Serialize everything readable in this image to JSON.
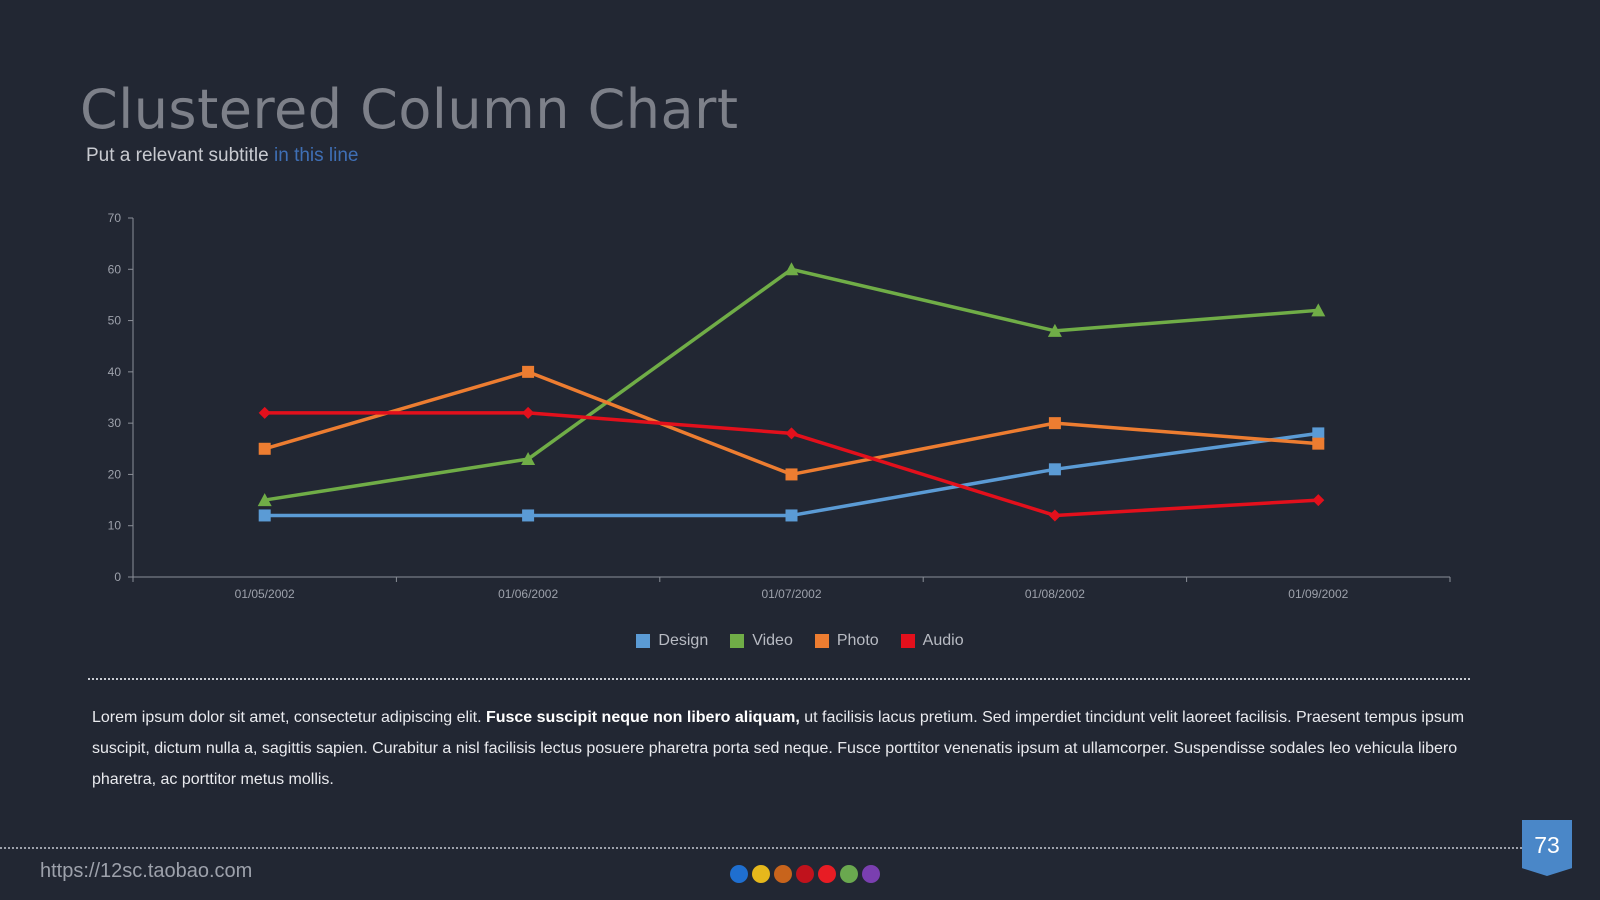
{
  "slide": {
    "title": "Clustered Column Chart",
    "subtitle_main": "Put a relevant subtitle ",
    "subtitle_highlight": "in this line",
    "body_part1": "Lorem ipsum dolor sit amet, consectetur adipiscing elit. ",
    "body_bold": "Fusce suscipit neque non libero aliquam,",
    "body_part2": " ut facilisis lacus pretium. Sed imperdiet tincidunt velit laoreet facilisis. Praesent tempus ipsum suscipit, dictum nulla a, sagittis sapien. Curabitur a nisl facilisis lectus posuere pharetra porta sed neque. Fusce porttitor venenatis ipsum at ullamcorper. Suspendisse sodales leo vehicula libero pharetra, ac porttitor metus mollis.",
    "footer_url": "https://12sc.taobao.com",
    "page_number": "73",
    "footer_dot_colors": [
      "#1f6fd0",
      "#e6b81c",
      "#c8641c",
      "#c0121c",
      "#e81c24",
      "#6aa84f",
      "#7a3fb0"
    ]
  },
  "chart_data": {
    "type": "line",
    "categories": [
      "01/05/2002",
      "01/06/2002",
      "01/07/2002",
      "01/08/2002",
      "01/09/2002"
    ],
    "ylim": [
      0,
      70
    ],
    "yticks": [
      0,
      10,
      20,
      30,
      40,
      50,
      60,
      70
    ],
    "grid": false,
    "legend_position": "bottom",
    "series": [
      {
        "name": "Design",
        "color": "#5b9bd5",
        "marker": "square",
        "values": [
          12,
          12,
          12,
          21,
          28
        ]
      },
      {
        "name": "Video",
        "color": "#70ad47",
        "marker": "triangle",
        "values": [
          15,
          23,
          60,
          48,
          52
        ]
      },
      {
        "name": "Photo",
        "color": "#ed7d31",
        "marker": "square",
        "values": [
          25,
          40,
          20,
          30,
          26
        ]
      },
      {
        "name": "Audio",
        "color": "#e3101c",
        "marker": "diamond",
        "values": [
          32,
          32,
          28,
          12,
          15
        ]
      }
    ]
  }
}
